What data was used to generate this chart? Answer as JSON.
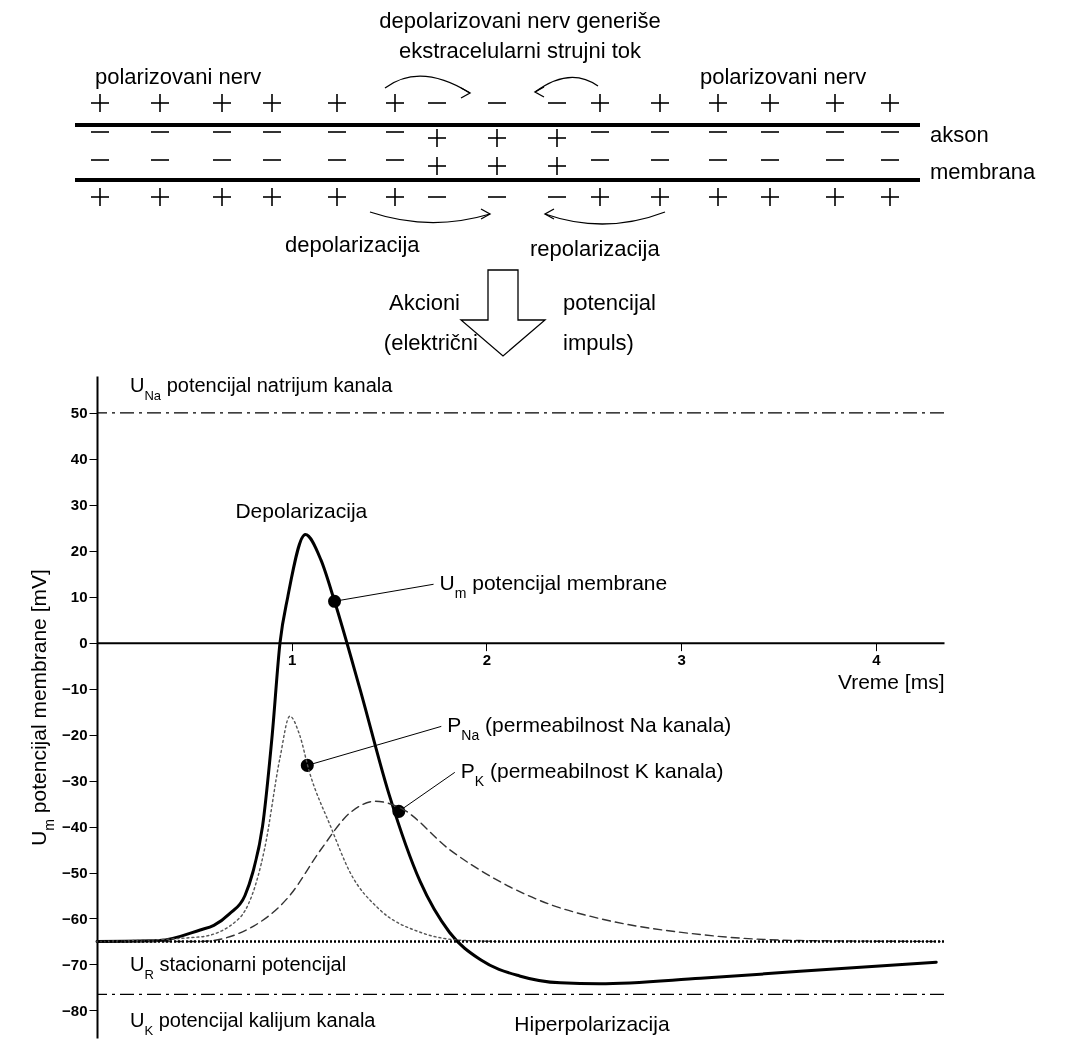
{
  "chart_data": {
    "type": "line",
    "xlabel": "Vreme [ms]",
    "ylabel": "U$_{m}$ potencijal membrane [mV]",
    "xlim": [
      0,
      4.35
    ],
    "ylim": [
      -86,
      58
    ],
    "xticks": [
      1,
      2,
      3,
      4
    ],
    "yticks": [
      -80,
      -70,
      -60,
      -50,
      -40,
      -30,
      -20,
      -10,
      0,
      10,
      20,
      30,
      40,
      50
    ],
    "series": [
      {
        "color": "#000000",
        "line_style": "solid",
        "x": [
          0,
          0.32,
          0.53,
          0.6,
          0.68,
          0.76,
          0.8,
          0.85,
          0.9,
          0.94,
          0.98,
          1.07,
          1.15,
          1.22,
          1.35,
          1.5,
          1.66,
          1.81,
          1.97,
          2.17,
          2.38,
          2.58,
          3.1,
          3.61,
          4.31
        ],
        "values": [
          -65,
          -64.8,
          -62.5,
          -61.5,
          -59,
          -55,
          -50,
          -40,
          -20,
          0,
          10,
          23.5,
          18,
          9,
          -10,
          -33,
          -52,
          -63,
          -69,
          -72.5,
          -74,
          -74.2,
          -73,
          -71.5,
          -69.5
        ]
      },
      {
        "color": "#555555",
        "line_style": "dotted",
        "x": [
          0,
          0.53,
          0.73,
          0.86,
          0.94,
          0.99,
          1.04,
          1.09,
          1.2,
          1.3,
          1.45,
          1.66,
          1.86,
          2.07
        ],
        "values": [
          -65,
          -64,
          -60,
          -45,
          -25,
          -16,
          -20,
          -28,
          -40,
          -50,
          -58,
          -63,
          -64.7,
          -65
        ]
      },
      {
        "color": "#333333",
        "line_style": "dashed",
        "x": [
          0,
          0.53,
          0.79,
          0.99,
          1.15,
          1.3,
          1.43,
          1.56,
          1.81,
          2.07,
          2.33,
          2.58,
          3.1,
          3.61,
          4.33
        ],
        "values": [
          -65,
          -65,
          -62,
          -55,
          -45,
          -37,
          -34.5,
          -36,
          -45,
          -52,
          -57,
          -60,
          -63.5,
          -64.8,
          -65
        ]
      }
    ],
    "ref_lines": [
      {
        "axis": "y",
        "value": 50,
        "label": "U$_{Na}$ potencijal natrijum kanala",
        "line_style": "dashed",
        "color": "#000000"
      },
      {
        "axis": "y",
        "value": -65,
        "label": "U$_{R}$ stacionarni potencijal",
        "line_style": "dotted",
        "color": "#000000"
      },
      {
        "axis": "y",
        "value": -76.5,
        "label": "U$_{K}$ potencijal kalijum kanala",
        "line_style": "dashed",
        "color": "#000000"
      }
    ],
    "annotations": [
      "depolarizovani nerv generiše",
      "ekstracelularni strujni tok",
      "polarizovani nerv",
      "polarizovani nerv",
      "akson",
      "membrana",
      "depolarizacija",
      "repolarizacija",
      "Akcioni",
      "(električni",
      "potencijal",
      "impuls)",
      {
        "text": "Depolarizacija",
        "x": 1.07,
        "y": 23.5
      },
      {
        "text": "Hiperpolarizacija",
        "x": 2.58,
        "y": -74.2
      },
      {
        "text": "U$_{m}$ potencijal membrane",
        "x": 1.22,
        "y": 9
      },
      {
        "text": "P$_{Na}$ (permeabilnost Na kanala)",
        "x": 1.08,
        "y": -26.7
      },
      {
        "text": "P$_{K}$ (permeabilnost K kanala)",
        "x": 1.55,
        "y": -36.7
      }
    ]
  }
}
